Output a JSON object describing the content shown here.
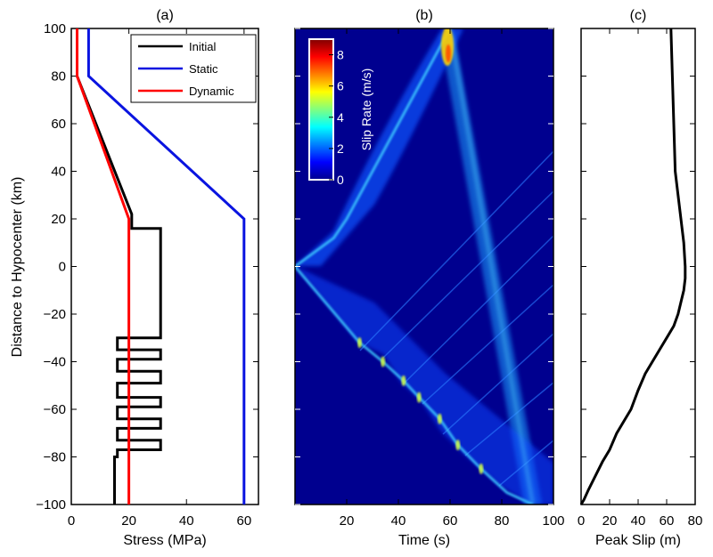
{
  "chart_data": [
    {
      "type": "line",
      "panel": "(a)",
      "xlabel": "Stress (MPa)",
      "ylabel": "Distance to Hypocenter (km)",
      "xlim": [
        0,
        65
      ],
      "ylim": [
        -100,
        100
      ],
      "xticks": [
        "0",
        "20",
        "40",
        "60"
      ],
      "yticks": [
        "100",
        "80",
        "60",
        "40",
        "20",
        "0",
        "−20",
        "−40",
        "−60",
        "−80",
        "−100"
      ],
      "yticks_v": [
        100,
        80,
        60,
        40,
        20,
        0,
        -20,
        -40,
        -60,
        -80,
        -100
      ],
      "legend_loc": "top-right",
      "series": [
        {
          "name": "Initial",
          "color": "#000000",
          "x": [
            2,
            2,
            21,
            21,
            31,
            31,
            16,
            16,
            31,
            31,
            16,
            16,
            31,
            31,
            16,
            16,
            31,
            31,
            16,
            16,
            31,
            31,
            16,
            16,
            31,
            31,
            16,
            16,
            15,
            15
          ],
          "y": [
            100,
            80,
            22,
            16,
            16,
            -30,
            -30,
            -35,
            -35,
            -39,
            -39,
            -44,
            -44,
            -49,
            -49,
            -55,
            -55,
            -59,
            -59,
            -64,
            -64,
            -68,
            -68,
            -73,
            -73,
            -77,
            -77,
            -80,
            -80,
            -100
          ]
        },
        {
          "name": "Static",
          "color": "#0a14e0",
          "x": [
            6,
            6,
            60,
            60
          ],
          "y": [
            100,
            80,
            20,
            -100
          ]
        },
        {
          "name": "Dynamic",
          "color": "#ff0000",
          "x": [
            2,
            2,
            20,
            20
          ],
          "y": [
            100,
            80,
            20,
            -100
          ]
        }
      ]
    },
    {
      "type": "heatmap",
      "panel": "(b)",
      "xlabel": "Time (s)",
      "xlim": [
        0,
        100
      ],
      "ylim": [
        -100,
        100
      ],
      "xticks": [
        "20",
        "40",
        "60",
        "80",
        "100"
      ],
      "colorbar": {
        "label": "Slip Rate (m/s)",
        "range": [
          0,
          9
        ],
        "ticks": [
          "0",
          "2",
          "4",
          "6",
          "8"
        ],
        "ticks_v": [
          0,
          2,
          4,
          6,
          8
        ],
        "colormap": "jet"
      },
      "background_color": "#00008f",
      "rupture_front": {
        "north": {
          "t": [
            0,
            15,
            20,
            40,
            60
          ],
          "d": [
            0,
            12,
            20,
            60,
            100
          ]
        },
        "south": {
          "t": [
            0,
            25,
            34,
            42,
            48,
            56,
            63,
            72,
            82,
            92
          ],
          "d": [
            0,
            -32,
            -40,
            -48,
            -55,
            -64,
            -75,
            -85,
            -95,
            -100
          ]
        },
        "stopping_phase": {
          "t": [
            60,
            92
          ],
          "d": [
            100,
            -100
          ]
        }
      }
    },
    {
      "type": "line",
      "panel": "(c)",
      "xlabel": "Peak Slip (m)",
      "xlim": [
        0,
        80
      ],
      "ylim": [
        -100,
        100
      ],
      "xticks": [
        "0",
        "20",
        "40",
        "60",
        "80"
      ],
      "series": [
        {
          "color": "#000000",
          "x": [
            63,
            64,
            65,
            66,
            68,
            70,
            72,
            73,
            73,
            72,
            70,
            68,
            65,
            60,
            55,
            50,
            45,
            40,
            35,
            30,
            25,
            20,
            15,
            10,
            5,
            2,
            0
          ],
          "y": [
            100,
            80,
            60,
            40,
            30,
            20,
            10,
            0,
            -5,
            -10,
            -15,
            -20,
            -25,
            -30,
            -35,
            -40,
            -45,
            -52,
            -60,
            -65,
            -70,
            -77,
            -82,
            -88,
            -94,
            -98,
            -100
          ]
        }
      ]
    }
  ]
}
